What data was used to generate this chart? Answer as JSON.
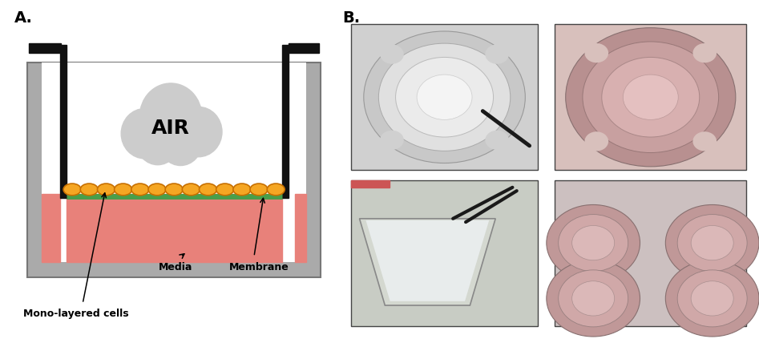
{
  "fig_width": 9.47,
  "fig_height": 4.33,
  "bg_color": "#ffffff",
  "label_A": "A.",
  "label_B": "B.",
  "label_fontsize": 14,
  "label_fontweight": "bold",
  "air_text": "AIR",
  "air_fontsize": 18,
  "air_fontweight": "bold",
  "media_text": "Media",
  "membrane_text": "Membrane",
  "cells_text": "Mono-layered cells",
  "annotation_fontsize": 9,
  "annotation_fontweight": "bold",
  "media_color": "#e8817a",
  "membrane_color": "#4a9e4a",
  "cell_color_face": "#f5a623",
  "cell_color_edge": "#c87000",
  "cloud_color": "#cccccc",
  "wall_gray": "#aaaaaa",
  "wall_black": "#111111",
  "photo_tl_bg": "#d0d0d0",
  "photo_tr_bg": "#d8c0bc",
  "photo_bl_bg": "#c8ccc4",
  "photo_br_bg": "#ccc0c0"
}
